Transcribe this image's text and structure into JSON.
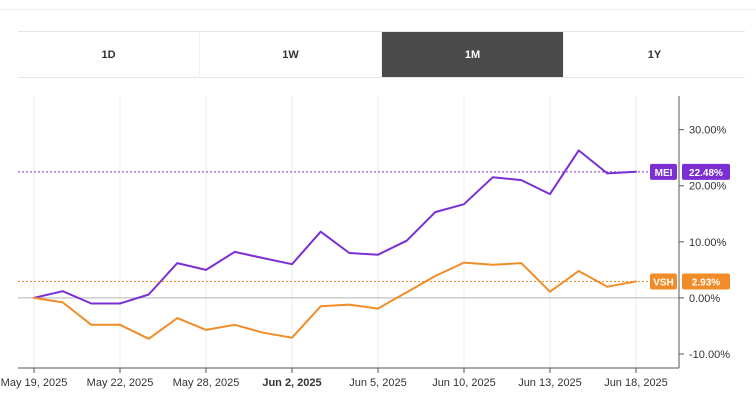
{
  "range_selector": {
    "options": [
      {
        "label": "1D",
        "active": false
      },
      {
        "label": "1W",
        "active": false
      },
      {
        "label": "1M",
        "active": true
      },
      {
        "label": "1Y",
        "active": false
      }
    ]
  },
  "chart_data": {
    "type": "line",
    "title": "",
    "xlabel": "",
    "ylabel": "",
    "x": [
      "May 19, 2025",
      "May 20, 2025",
      "May 21, 2025",
      "May 22, 2025",
      "May 23, 2025",
      "May 27, 2025",
      "May 28, 2025",
      "May 29, 2025",
      "May 30, 2025",
      "Jun 2, 2025",
      "Jun 3, 2025",
      "Jun 4, 2025",
      "Jun 5, 2025",
      "Jun 6, 2025",
      "Jun 9, 2025",
      "Jun 10, 2025",
      "Jun 11, 2025",
      "Jun 12, 2025",
      "Jun 13, 2025",
      "Jun 16, 2025",
      "Jun 17, 2025",
      "Jun 18, 2025"
    ],
    "series": [
      {
        "name": "MEI",
        "color": "#7b2fd3",
        "values": [
          0.0,
          1.2,
          -1.0,
          -1.0,
          0.6,
          6.2,
          5.0,
          8.2,
          7.1,
          6.0,
          11.8,
          8.0,
          7.7,
          10.2,
          15.3,
          16.7,
          21.5,
          21.0,
          18.5,
          26.3,
          22.2,
          22.48
        ],
        "last_label": "22.48%"
      },
      {
        "name": "VSH",
        "color": "#f28c28",
        "values": [
          0.0,
          -0.8,
          -4.8,
          -4.8,
          -7.3,
          -3.6,
          -5.7,
          -4.8,
          -6.2,
          -7.1,
          -1.5,
          -1.2,
          -1.9,
          1.0,
          3.9,
          6.3,
          5.9,
          6.2,
          1.1,
          4.8,
          2.0,
          2.93
        ],
        "last_label": "2.93%"
      }
    ],
    "x_tick_labels": [
      {
        "label": "May 19, 2025",
        "index": 0,
        "bold": false
      },
      {
        "label": "May 22, 2025",
        "index": 3,
        "bold": false
      },
      {
        "label": "May 28, 2025",
        "index": 6,
        "bold": false
      },
      {
        "label": "Jun 2, 2025",
        "index": 9,
        "bold": true
      },
      {
        "label": "Jun 5, 2025",
        "index": 12,
        "bold": false
      },
      {
        "label": "Jun 10, 2025",
        "index": 15,
        "bold": false
      },
      {
        "label": "Jun 13, 2025",
        "index": 18,
        "bold": false
      },
      {
        "label": "Jun 18, 2025",
        "index": 21,
        "bold": false
      }
    ],
    "y_ticks": [
      {
        "value": 30,
        "label": "30.00%"
      },
      {
        "value": 20,
        "label": "20.00%"
      },
      {
        "value": 10,
        "label": "10.00%"
      },
      {
        "value": 0,
        "label": "0.00%"
      },
      {
        "value": -10,
        "label": "-10.00%"
      }
    ],
    "ylim": [
      -12.5,
      36
    ],
    "grid": "vertical",
    "y_axis_position": "right"
  }
}
